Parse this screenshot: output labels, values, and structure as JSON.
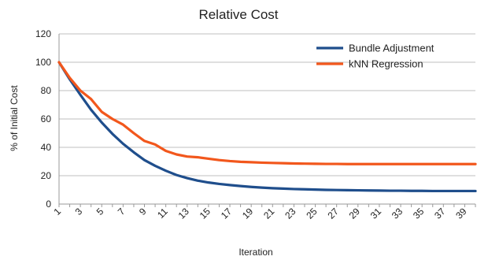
{
  "chart_data": {
    "type": "line",
    "title": "Relative Cost",
    "xlabel": "Iteration",
    "ylabel": "% of Initial Cost",
    "ylim": [
      0,
      120
    ],
    "yticks": [
      0,
      20,
      40,
      60,
      80,
      100,
      120
    ],
    "x": [
      1,
      2,
      3,
      4,
      5,
      6,
      7,
      8,
      9,
      10,
      11,
      12,
      13,
      14,
      15,
      16,
      17,
      18,
      19,
      20,
      21,
      22,
      23,
      24,
      25,
      26,
      27,
      28,
      29,
      30,
      31,
      32,
      33,
      34,
      35,
      36,
      37,
      38,
      39,
      40
    ],
    "xtick_labels": [
      "1",
      "3",
      "5",
      "7",
      "9",
      "11",
      "13",
      "15",
      "17",
      "19",
      "21",
      "23",
      "25",
      "27",
      "29",
      "31",
      "33",
      "35",
      "37",
      "39"
    ],
    "grid": true,
    "legend_position": "top-right",
    "series": [
      {
        "name": "Bundle Adjustment",
        "color": "#1f4e8c",
        "values": [
          100,
          88,
          77,
          66.5,
          57.5,
          49.5,
          42.5,
          36.5,
          31,
          27,
          23.5,
          20.5,
          18.3,
          16.5,
          15.2,
          14.2,
          13.4,
          12.7,
          12.1,
          11.6,
          11.2,
          10.9,
          10.6,
          10.4,
          10.2,
          10.0,
          9.9,
          9.8,
          9.7,
          9.6,
          9.5,
          9.4,
          9.4,
          9.3,
          9.3,
          9.2,
          9.2,
          9.2,
          9.2,
          9.2
        ]
      },
      {
        "name": "kNN Regression",
        "color": "#f2571c",
        "values": [
          100,
          89,
          80,
          74,
          65,
          60,
          56,
          50,
          44.5,
          42,
          37.5,
          35,
          33.5,
          33,
          32,
          31,
          30.3,
          29.8,
          29.5,
          29.2,
          29,
          28.8,
          28.6,
          28.5,
          28.4,
          28.3,
          28.3,
          28.2,
          28.2,
          28.2,
          28.2,
          28.2,
          28.2,
          28.2,
          28.2,
          28.2,
          28.2,
          28.2,
          28.2,
          28.2
        ]
      }
    ]
  }
}
